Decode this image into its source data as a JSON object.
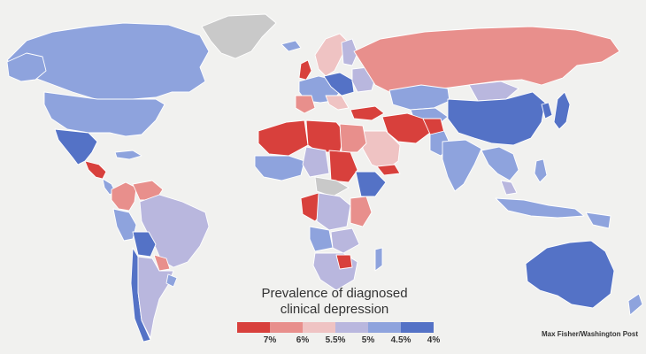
{
  "legend": {
    "title_line1": "Prevalence of diagnosed",
    "title_line2": "clinical depression",
    "colors": [
      "#d8403c",
      "#e88f8c",
      "#efc3c3",
      "#b9b7de",
      "#8ea3dd",
      "#5472c6"
    ],
    "ticks": [
      "7%",
      "6%",
      "5.5%",
      "5%",
      "4.5%",
      "4%"
    ]
  },
  "credit": "Max Fisher/Washington Post",
  "palette": {
    "nodata": "#c9c9c9",
    "red": "#d8403c",
    "salmon": "#e88f8c",
    "pink": "#efc3c3",
    "lavender": "#b9b7de",
    "lightblue": "#8ea3dd",
    "blue": "#5472c6"
  }
}
